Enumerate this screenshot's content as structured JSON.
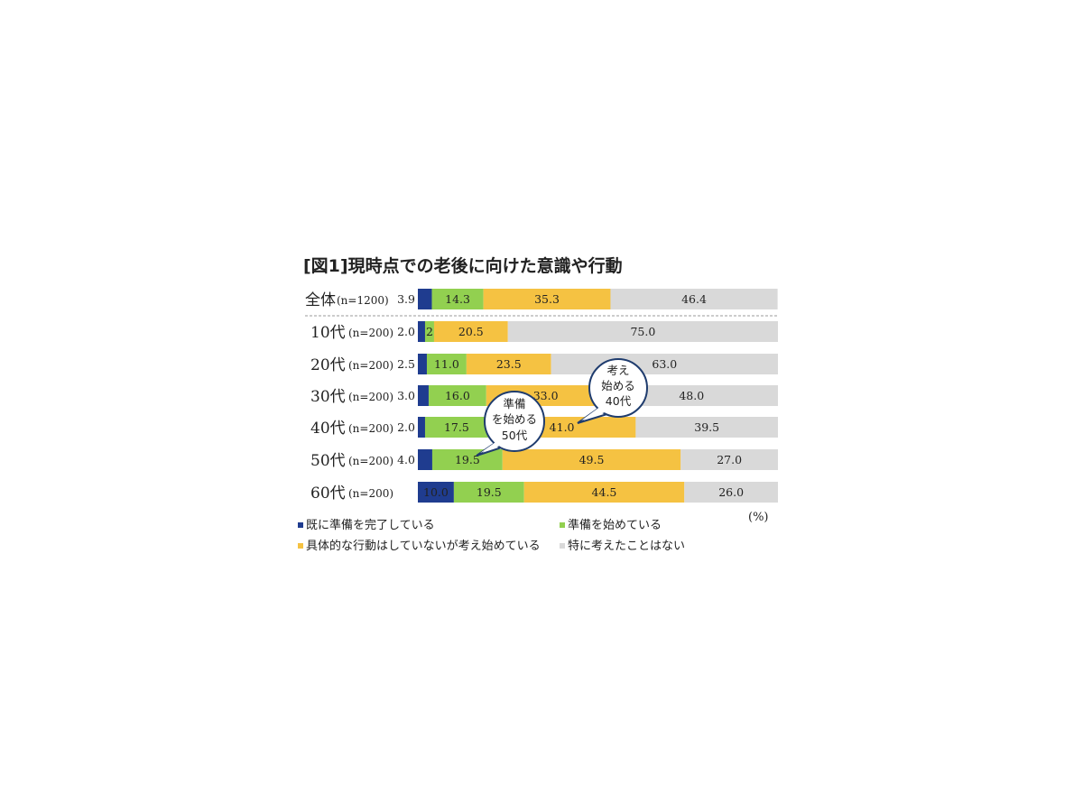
{
  "title": "[図1]現時点での老後に向けた意識や行動",
  "unit": "(%)",
  "colors": {
    "prepared": "#1f3c8f",
    "started": "#92d050",
    "thinking": "#f5c242",
    "none": "#d9d9d9"
  },
  "chart_data": {
    "type": "bar",
    "orientation": "horizontal",
    "stacked": true,
    "xlim": [
      0,
      100
    ],
    "categories": [
      {
        "label": "全体",
        "n": "(n=1200)"
      },
      {
        "label": "10代",
        "n": "(n=200)"
      },
      {
        "label": "20代",
        "n": "(n=200)"
      },
      {
        "label": "30代",
        "n": "(n=200)"
      },
      {
        "label": "40代",
        "n": "(n=200)"
      },
      {
        "label": "50代",
        "n": "(n=200)"
      },
      {
        "label": "60代",
        "n": "(n=200)"
      }
    ],
    "series": [
      {
        "name": "既に準備を完了している",
        "color": "#1f3c8f",
        "values": [
          3.9,
          2.0,
          2.5,
          3.0,
          2.0,
          4.0,
          10.0
        ]
      },
      {
        "name": "準備を始めている",
        "color": "#92d050",
        "values": [
          14.3,
          2.5,
          11.0,
          16.0,
          17.5,
          19.5,
          19.5
        ]
      },
      {
        "name": "具体的な行動はしていないが考え始めている",
        "color": "#f5c242",
        "values": [
          35.3,
          20.5,
          23.5,
          33.0,
          41.0,
          49.5,
          44.5
        ]
      },
      {
        "name": "特に考えたことはない",
        "color": "#d9d9d9",
        "values": [
          46.4,
          75.0,
          63.0,
          48.0,
          39.5,
          27.0,
          26.0
        ]
      }
    ],
    "annotations": [
      {
        "lines": [
          "考え",
          "始める",
          "40代"
        ]
      },
      {
        "lines": [
          "準備",
          "を始める",
          "50代"
        ]
      }
    ]
  }
}
